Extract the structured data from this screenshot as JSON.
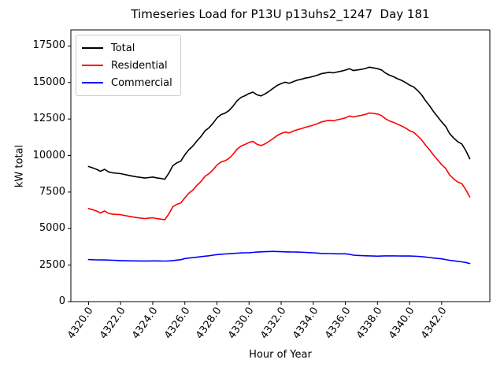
{
  "chart_data": {
    "type": "line",
    "title": "Timeseries Load for P13U p13uhs2_1247  Day 181",
    "xlabel": "Hour of Year",
    "ylabel": "kW total",
    "grid": false,
    "legend_position": "upper left",
    "xlim": [
      4318.9,
      4345.0
    ],
    "ylim": [
      0,
      18600
    ],
    "x_start": 4320.0,
    "x_step": 0.25,
    "x_ticks": [
      {
        "value": 4320,
        "label": "4320.0"
      },
      {
        "value": 4322,
        "label": "4322.0"
      },
      {
        "value": 4324,
        "label": "4324.0"
      },
      {
        "value": 4326,
        "label": "4326.0"
      },
      {
        "value": 4328,
        "label": "4328.0"
      },
      {
        "value": 4330,
        "label": "4330.0"
      },
      {
        "value": 4332,
        "label": "4332.0"
      },
      {
        "value": 4334,
        "label": "4334.0"
      },
      {
        "value": 4336,
        "label": "4336.0"
      },
      {
        "value": 4338,
        "label": "4338.0"
      },
      {
        "value": 4340,
        "label": "4340.0"
      },
      {
        "value": 4342,
        "label": "4342.0"
      }
    ],
    "y_ticks": [
      {
        "value": 0,
        "label": "0"
      },
      {
        "value": 2500,
        "label": "2500"
      },
      {
        "value": 5000,
        "label": "5000"
      },
      {
        "value": 7500,
        "label": "7500"
      },
      {
        "value": 10000,
        "label": "10000"
      },
      {
        "value": 12500,
        "label": "12500"
      },
      {
        "value": 15000,
        "label": "15000"
      },
      {
        "value": 17500,
        "label": "17500"
      }
    ],
    "series": [
      {
        "name": "Total",
        "color": "#000000",
        "y": [
          9250,
          9160,
          9060,
          8920,
          9060,
          8880,
          8820,
          8790,
          8760,
          8700,
          8640,
          8590,
          8540,
          8500,
          8460,
          8490,
          8530,
          8470,
          8430,
          8380,
          8780,
          9300,
          9500,
          9620,
          10050,
          10400,
          10650,
          11000,
          11300,
          11680,
          11900,
          12200,
          12570,
          12800,
          12900,
          13080,
          13380,
          13750,
          13980,
          14100,
          14250,
          14340,
          14160,
          14080,
          14220,
          14400,
          14600,
          14800,
          14930,
          15020,
          14950,
          15060,
          15160,
          15220,
          15300,
          15350,
          15420,
          15500,
          15600,
          15650,
          15700,
          15660,
          15720,
          15780,
          15850,
          15950,
          15820,
          15860,
          15900,
          15960,
          16050,
          16000,
          15950,
          15860,
          15650,
          15500,
          15400,
          15260,
          15150,
          15000,
          14820,
          14700,
          14450,
          14150,
          13750,
          13400,
          13000,
          12650,
          12300,
          12000,
          11500,
          11200,
          10950,
          10800,
          10350,
          9780
        ]
      },
      {
        "name": "Residential",
        "color": "#ff0000",
        "y": [
          6370,
          6290,
          6200,
          6070,
          6210,
          6040,
          5990,
          5970,
          5950,
          5900,
          5845,
          5800,
          5755,
          5720,
          5680,
          5710,
          5740,
          5685,
          5650,
          5605,
          5990,
          6490,
          6660,
          6750,
          7100,
          7420,
          7640,
          7960,
          8220,
          8570,
          8760,
          9020,
          9350,
          9560,
          9640,
          9800,
          10080,
          10430,
          10650,
          10760,
          10900,
          10970,
          10770,
          10680,
          10800,
          10970,
          11160,
          11370,
          11510,
          11610,
          11550,
          11670,
          11770,
          11840,
          11930,
          12000,
          12080,
          12180,
          12300,
          12360,
          12410,
          12380,
          12450,
          12510,
          12580,
          12710,
          12640,
          12700,
          12750,
          12820,
          12920,
          12880,
          12840,
          12740,
          12520,
          12370,
          12270,
          12140,
          12030,
          11880,
          11700,
          11590,
          11350,
          11070,
          10700,
          10380,
          10020,
          9700,
          9370,
          9120,
          8670,
          8400,
          8190,
          8080,
          7670,
          7170
        ]
      },
      {
        "name": "Commercial",
        "color": "#0000ff",
        "y": [
          2880,
          2870,
          2860,
          2850,
          2850,
          2840,
          2830,
          2820,
          2810,
          2800,
          2795,
          2790,
          2785,
          2780,
          2780,
          2780,
          2790,
          2785,
          2780,
          2775,
          2790,
          2810,
          2840,
          2870,
          2950,
          2980,
          3010,
          3040,
          3080,
          3110,
          3140,
          3180,
          3220,
          3240,
          3260,
          3280,
          3300,
          3315,
          3330,
          3340,
          3350,
          3370,
          3390,
          3405,
          3420,
          3430,
          3440,
          3430,
          3420,
          3410,
          3400,
          3395,
          3390,
          3380,
          3370,
          3355,
          3340,
          3320,
          3300,
          3295,
          3290,
          3280,
          3275,
          3270,
          3270,
          3240,
          3180,
          3165,
          3150,
          3140,
          3130,
          3120,
          3110,
          3120,
          3130,
          3130,
          3130,
          3125,
          3120,
          3120,
          3120,
          3110,
          3100,
          3080,
          3050,
          3020,
          2980,
          2955,
          2930,
          2880,
          2830,
          2795,
          2760,
          2720,
          2680,
          2610
        ]
      }
    ]
  }
}
